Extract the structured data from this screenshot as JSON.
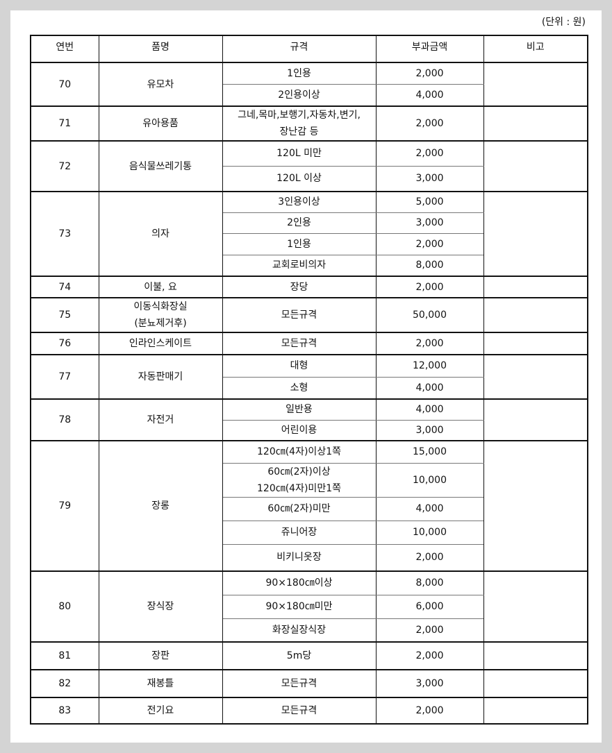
{
  "unit_label": "(단위 : 원)",
  "headers": [
    "연번",
    "품명",
    "규격",
    "부과금액",
    "비고"
  ],
  "items": [
    {
      "no": "70",
      "name": "유모차",
      "specs": [
        {
          "spec": "1인용",
          "amount": "2,000"
        },
        {
          "spec": "2인용이상",
          "amount": "4,000"
        }
      ]
    },
    {
      "no": "71",
      "name": "유아용품",
      "specs": [
        {
          "spec": "그네,목마,보행기,자동차,변기,\n장난감 등",
          "amount": "2,000"
        }
      ]
    },
    {
      "no": "72",
      "name": "음식물쓰레기통",
      "specs": [
        {
          "spec": "120L 미만",
          "amount": "2,000"
        },
        {
          "spec": "120L 이상",
          "amount": "3,000"
        }
      ]
    },
    {
      "no": "73",
      "name": "의자",
      "specs": [
        {
          "spec": "3인용이상",
          "amount": "5,000"
        },
        {
          "spec": "2인용",
          "amount": "3,000"
        },
        {
          "spec": "1인용",
          "amount": "2,000"
        },
        {
          "spec": "교회로비의자",
          "amount": "8,000"
        }
      ]
    },
    {
      "no": "74",
      "name": "이불, 요",
      "specs": [
        {
          "spec": "장당",
          "amount": "2,000"
        }
      ]
    },
    {
      "no": "75",
      "name": "이동식화장실\n(분뇨제거후)",
      "specs": [
        {
          "spec": "모든규격",
          "amount": "50,000"
        }
      ]
    },
    {
      "no": "76",
      "name": "인라인스케이트",
      "specs": [
        {
          "spec": "모든규격",
          "amount": "2,000"
        }
      ]
    },
    {
      "no": "77",
      "name": "자동판매기",
      "specs": [
        {
          "spec": "대형",
          "amount": "12,000"
        },
        {
          "spec": "소형",
          "amount": "4,000"
        }
      ]
    },
    {
      "no": "78",
      "name": "자전거",
      "specs": [
        {
          "spec": "일반용",
          "amount": "4,000"
        },
        {
          "spec": "어린이용",
          "amount": "3,000"
        }
      ]
    },
    {
      "no": "79",
      "name": "장롱",
      "specs": [
        {
          "spec": "120㎝(4자)이상1쪽",
          "amount": "15,000"
        },
        {
          "spec": "60㎝(2자)이상\n120㎝(4자)미만1쪽",
          "amount": "10,000"
        },
        {
          "spec": "60㎝(2자)미만",
          "amount": "4,000"
        },
        {
          "spec": "쥬니어장",
          "amount": "10,000"
        },
        {
          "spec": "비키니옷장",
          "amount": "2,000"
        }
      ]
    },
    {
      "no": "80",
      "name": "장식장",
      "specs": [
        {
          "spec": "90×180㎝이상",
          "amount": "8,000"
        },
        {
          "spec": "90×180㎝미만",
          "amount": "6,000"
        },
        {
          "spec": "화장실장식장",
          "amount": "2,000"
        }
      ]
    },
    {
      "no": "81",
      "name": "장판",
      "specs": [
        {
          "spec": "5m당",
          "amount": "2,000"
        }
      ]
    },
    {
      "no": "82",
      "name": "재봉틀",
      "specs": [
        {
          "spec": "모든규격",
          "amount": "3,000"
        }
      ]
    },
    {
      "no": "83",
      "name": "전기요",
      "specs": [
        {
          "spec": "모든규격",
          "amount": "2,000"
        }
      ]
    }
  ]
}
